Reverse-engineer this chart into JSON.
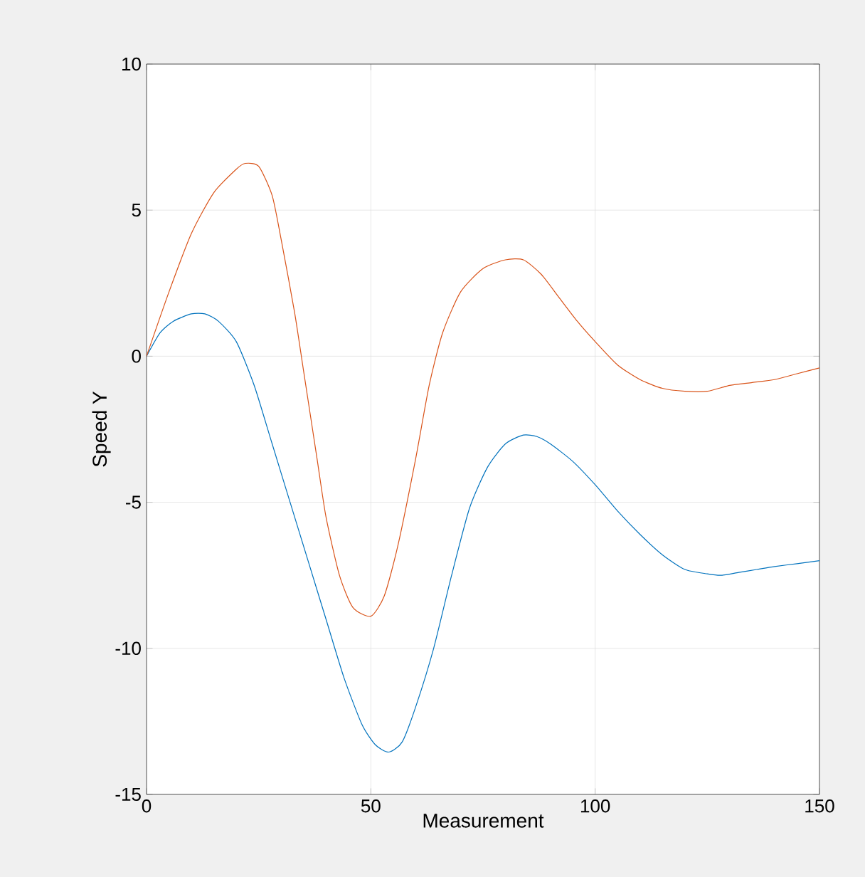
{
  "chart_data": {
    "type": "line",
    "xlabel": "Measurement",
    "ylabel": "Speed Y",
    "xlim": [
      0,
      150
    ],
    "ylim": [
      -15,
      10
    ],
    "xticks": [
      0,
      50,
      100,
      150
    ],
    "yticks": [
      -15,
      -10,
      -5,
      0,
      5,
      10
    ],
    "grid": true,
    "series": [
      {
        "color": "#0072bd",
        "x": [
          0,
          3,
          6,
          10,
          13,
          16,
          20,
          24,
          28,
          32,
          36,
          40,
          44,
          48,
          51,
          54,
          57,
          60,
          64,
          68,
          72,
          76,
          80,
          84,
          87,
          90,
          95,
          100,
          105,
          110,
          115,
          120,
          125,
          128,
          132,
          136,
          140,
          145,
          150
        ],
        "values": [
          0,
          0.8,
          1.2,
          1.45,
          1.45,
          1.2,
          0.5,
          -1,
          -3,
          -5,
          -7,
          -9,
          -11,
          -12.6,
          -13.3,
          -13.55,
          -13.2,
          -12,
          -10,
          -7.5,
          -5.2,
          -3.8,
          -3.0,
          -2.7,
          -2.75,
          -3.0,
          -3.6,
          -4.4,
          -5.3,
          -6.1,
          -6.8,
          -7.3,
          -7.45,
          -7.5,
          -7.4,
          -7.3,
          -7.2,
          -7.1,
          -7.0
        ]
      },
      {
        "color": "#d95319",
        "x": [
          0,
          5,
          10,
          15,
          20,
          22,
          25,
          28,
          30,
          33,
          35,
          38,
          40,
          43,
          46,
          50,
          53,
          56,
          60,
          63,
          66,
          70,
          75,
          80,
          84,
          88,
          92,
          96,
          100,
          105,
          110,
          115,
          120,
          125,
          130,
          135,
          140,
          145,
          150
        ],
        "values": [
          0,
          2.2,
          4.2,
          5.6,
          6.4,
          6.6,
          6.5,
          5.5,
          4,
          1.5,
          -0.5,
          -3.5,
          -5.5,
          -7.5,
          -8.6,
          -8.9,
          -8.2,
          -6.5,
          -3.5,
          -1,
          0.8,
          2.2,
          3.0,
          3.3,
          3.3,
          2.8,
          2.0,
          1.2,
          0.5,
          -0.3,
          -0.8,
          -1.1,
          -1.2,
          -1.2,
          -1.0,
          -0.9,
          -0.8,
          -0.6,
          -0.4
        ]
      }
    ]
  }
}
